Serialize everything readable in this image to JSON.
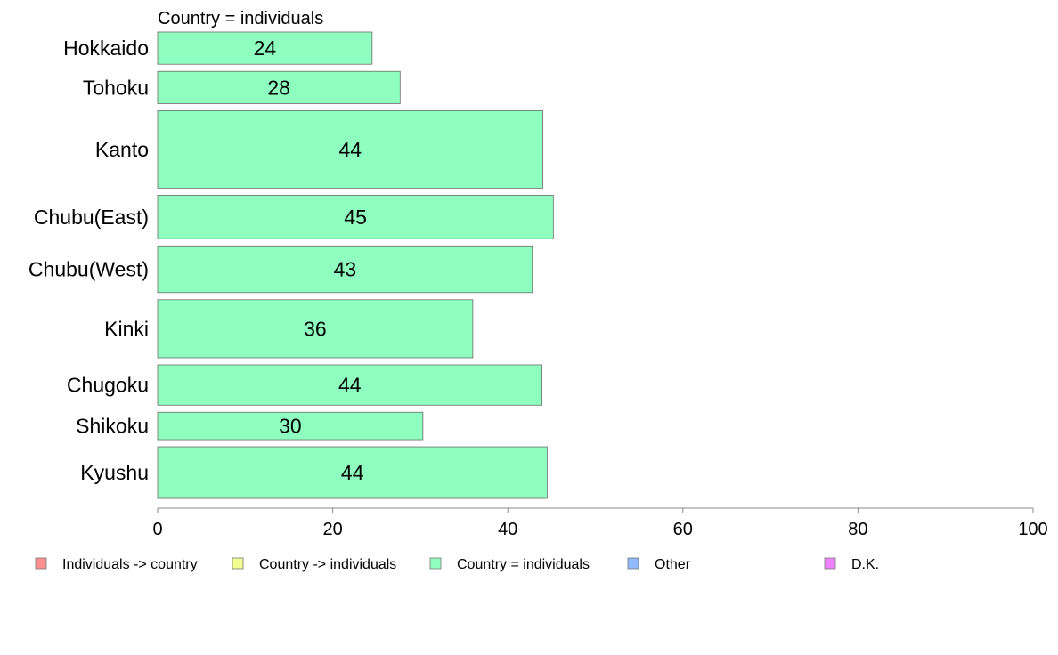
{
  "chart_data": {
    "type": "bar",
    "orientation": "horizontal",
    "title": "Country = individuals",
    "categories": [
      "Hokkaido",
      "Tohoku",
      "Kanto",
      "Chubu(East)",
      "Chubu(West)",
      "Kinki",
      "Chugoku",
      "Shikoku",
      "Kyushu"
    ],
    "category_weights": [
      1,
      1,
      2.4,
      1.35,
      1.45,
      1.8,
      1.25,
      0.85,
      1.6
    ],
    "series": [
      {
        "name": "Country = individuals",
        "color": "#8fffc0",
        "values": [
          24.5,
          27.7,
          44,
          45.2,
          42.8,
          36,
          43.9,
          30.3,
          44.5
        ],
        "labels": [
          "24",
          "28",
          "44",
          "45",
          "43",
          "36",
          "44",
          "30",
          "44"
        ]
      }
    ],
    "xlim": [
      0,
      100
    ],
    "xticks": [
      0,
      20,
      40,
      60,
      80,
      100
    ],
    "xtick_labels": [
      "0",
      "20",
      "40",
      "60",
      "80",
      "100"
    ],
    "xlabel": "",
    "ylabel": "",
    "grid": false,
    "legend": {
      "position": "bottom",
      "entries": [
        {
          "label": "Individuals -> country",
          "color": "#ff9090"
        },
        {
          "label": "Country -> individuals",
          "color": "#f0ff90"
        },
        {
          "label": "Country = individuals",
          "color": "#8fffc0"
        },
        {
          "label": "Other",
          "color": "#90baff"
        },
        {
          "label": "D.K.",
          "color": "#ee82ff"
        }
      ]
    }
  }
}
